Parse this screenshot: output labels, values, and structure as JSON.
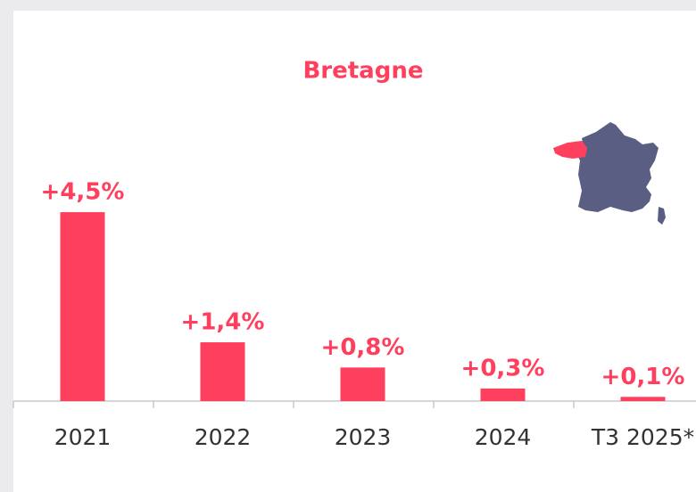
{
  "chart_data": {
    "type": "bar",
    "title": "Bretagne",
    "categories": [
      "2021",
      "2022",
      "2023",
      "2024",
      "T3 2025*"
    ],
    "values": [
      4.5,
      1.4,
      0.8,
      0.3,
      0.1
    ],
    "value_labels": [
      "+4,5%",
      "+1,4%",
      "+0,8%",
      "+0,3%",
      "+0,1%"
    ],
    "color": "#ff3f5e"
  }
}
